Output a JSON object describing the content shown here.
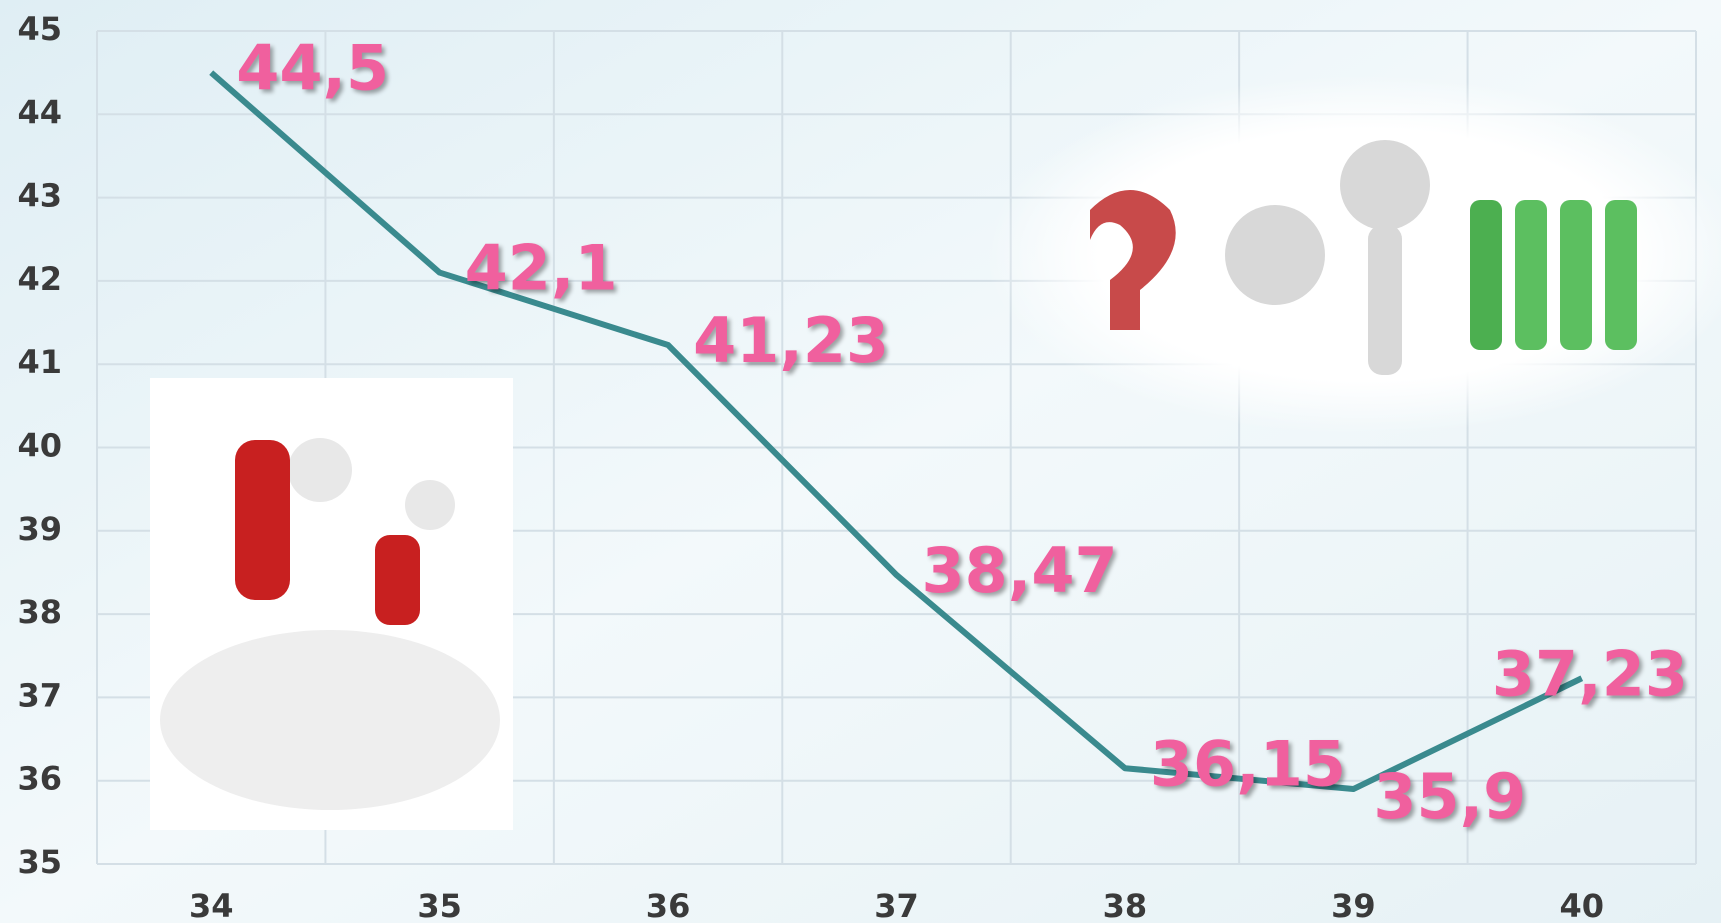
{
  "chart_data": {
    "type": "line",
    "categories": [
      "34",
      "35",
      "36",
      "37",
      "38",
      "39",
      "40"
    ],
    "values": [
      44.5,
      42.1,
      41.23,
      38.47,
      36.15,
      35.9,
      37.23
    ],
    "value_labels": [
      "44,5",
      "42,1",
      "41,23",
      "38,47",
      "36,15",
      "35,9",
      "37,23"
    ],
    "color": "#3a8a8e",
    "label_color": "#f0609e",
    "ylim": [
      35,
      45
    ],
    "yticks": [
      35,
      36,
      37,
      38,
      39,
      40,
      41,
      42,
      43,
      44,
      45
    ],
    "grid": true
  }
}
